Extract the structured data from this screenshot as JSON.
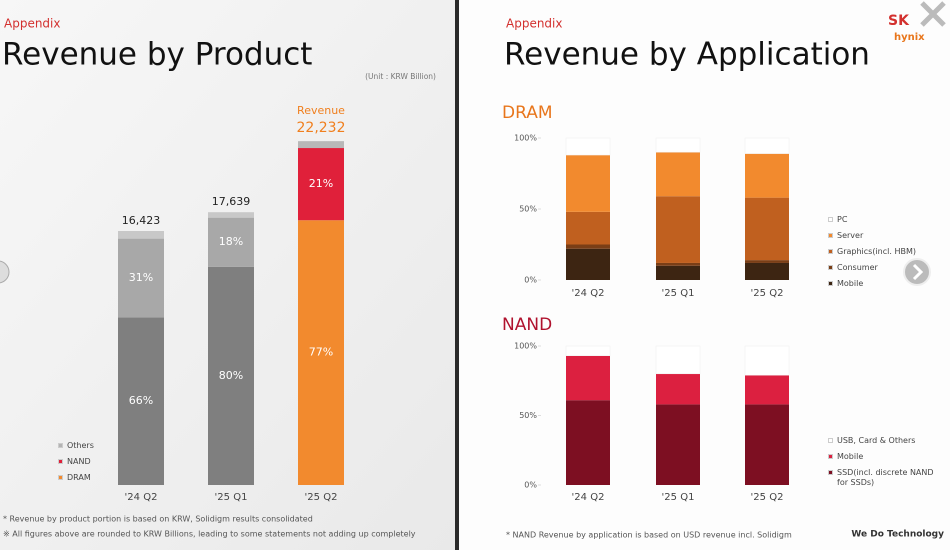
{
  "left_slide": {
    "section": "Appendix",
    "title": "Revenue by Product",
    "footnotes": [
      "* Revenue by product portion is based on KRW, Solidigm results consolidated",
      "※ All figures above are rounded to KRW Billions, leading to some statements not adding up completely"
    ]
  },
  "right_slide": {
    "section": "Appendix",
    "title": "Revenue by Application",
    "logo": {
      "sk": "SK",
      "hynix": "hynix"
    },
    "footnotes": [
      "* NAND Revenue by application is based on USD revenue incl. Solidigm"
    ],
    "tagline": "We Do Technology"
  },
  "chart_data": [
    {
      "type": "share_bar",
      "subtitle": "(Unit : KRW Billion)",
      "annotation": "Revenue",
      "categories": [
        "'24 Q2",
        "'25 Q1",
        "'25 Q2"
      ],
      "totals": [
        16423,
        17639,
        22232
      ],
      "total_labels": [
        "16,423",
        "17,639",
        "22,232"
      ],
      "total_colors": [
        "#222222",
        "#222222",
        "#f07f1e"
      ],
      "series": [
        {
          "name": "DRAM",
          "color": "#f28a2e",
          "colors": [
            "#7f7f7f",
            "#7f7f7f",
            "#f28a2e"
          ],
          "values": [
            66,
            80,
            77
          ],
          "value_labels": [
            "66%",
            "80%",
            "77%"
          ]
        },
        {
          "name": "NAND",
          "color": "#e0203a",
          "colors": [
            "#a8a8a8",
            "#a8a8a8",
            "#e0203a"
          ],
          "values": [
            31,
            18,
            21
          ],
          "value_labels": [
            "31%",
            "18%",
            "21%"
          ]
        },
        {
          "name": "Others",
          "color": "#b4b4b4",
          "colors": [
            "#c8c8c8",
            "#c8c8c8",
            "#b8b8b8"
          ],
          "values": [
            3,
            2,
            2
          ]
        }
      ]
    },
    {
      "type": "stacked_bar",
      "title": "DRAM",
      "title_color": "#e8761c",
      "categories": [
        "'24 Q2",
        "'25 Q1",
        "'25 Q2"
      ],
      "ylim": [
        0,
        100
      ],
      "yticks": [
        {
          "value": 0,
          "label": "0%"
        },
        {
          "value": 50,
          "label": "50%"
        },
        {
          "value": 100,
          "label": "100%"
        }
      ],
      "series": [
        {
          "name": "Mobile",
          "color": "#3d2512",
          "values": [
            22,
            10,
            12
          ]
        },
        {
          "name": "Consumer",
          "color": "#7a3e16",
          "values": [
            3,
            2,
            2
          ]
        },
        {
          "name": "Graphics(incl. HBM)",
          "color": "#c0601f",
          "values": [
            23,
            47,
            44
          ]
        },
        {
          "name": "Server",
          "color": "#f28a2e",
          "values": [
            40,
            31,
            31
          ]
        },
        {
          "name": "PC",
          "color": "#ffffff",
          "values": [
            12,
            10,
            11
          ]
        }
      ]
    },
    {
      "type": "stacked_bar",
      "title": "NAND",
      "title_color": "#b0122e",
      "categories": [
        "'24 Q2",
        "'25 Q1",
        "'25 Q2"
      ],
      "ylim": [
        0,
        100
      ],
      "yticks": [
        {
          "value": 0,
          "label": "0%"
        },
        {
          "value": 50,
          "label": "50%"
        },
        {
          "value": 100,
          "label": "100%"
        }
      ],
      "series": [
        {
          "name": "SSD(incl. discrete NAND for SSDs)",
          "color": "#7d0f22",
          "values": [
            61,
            58,
            58
          ]
        },
        {
          "name": "Mobile",
          "color": "#dc2040",
          "values": [
            32,
            22,
            21
          ]
        },
        {
          "name": "USB, Card & Others",
          "color": "#ffffff",
          "values": [
            7,
            20,
            21
          ]
        }
      ]
    }
  ]
}
